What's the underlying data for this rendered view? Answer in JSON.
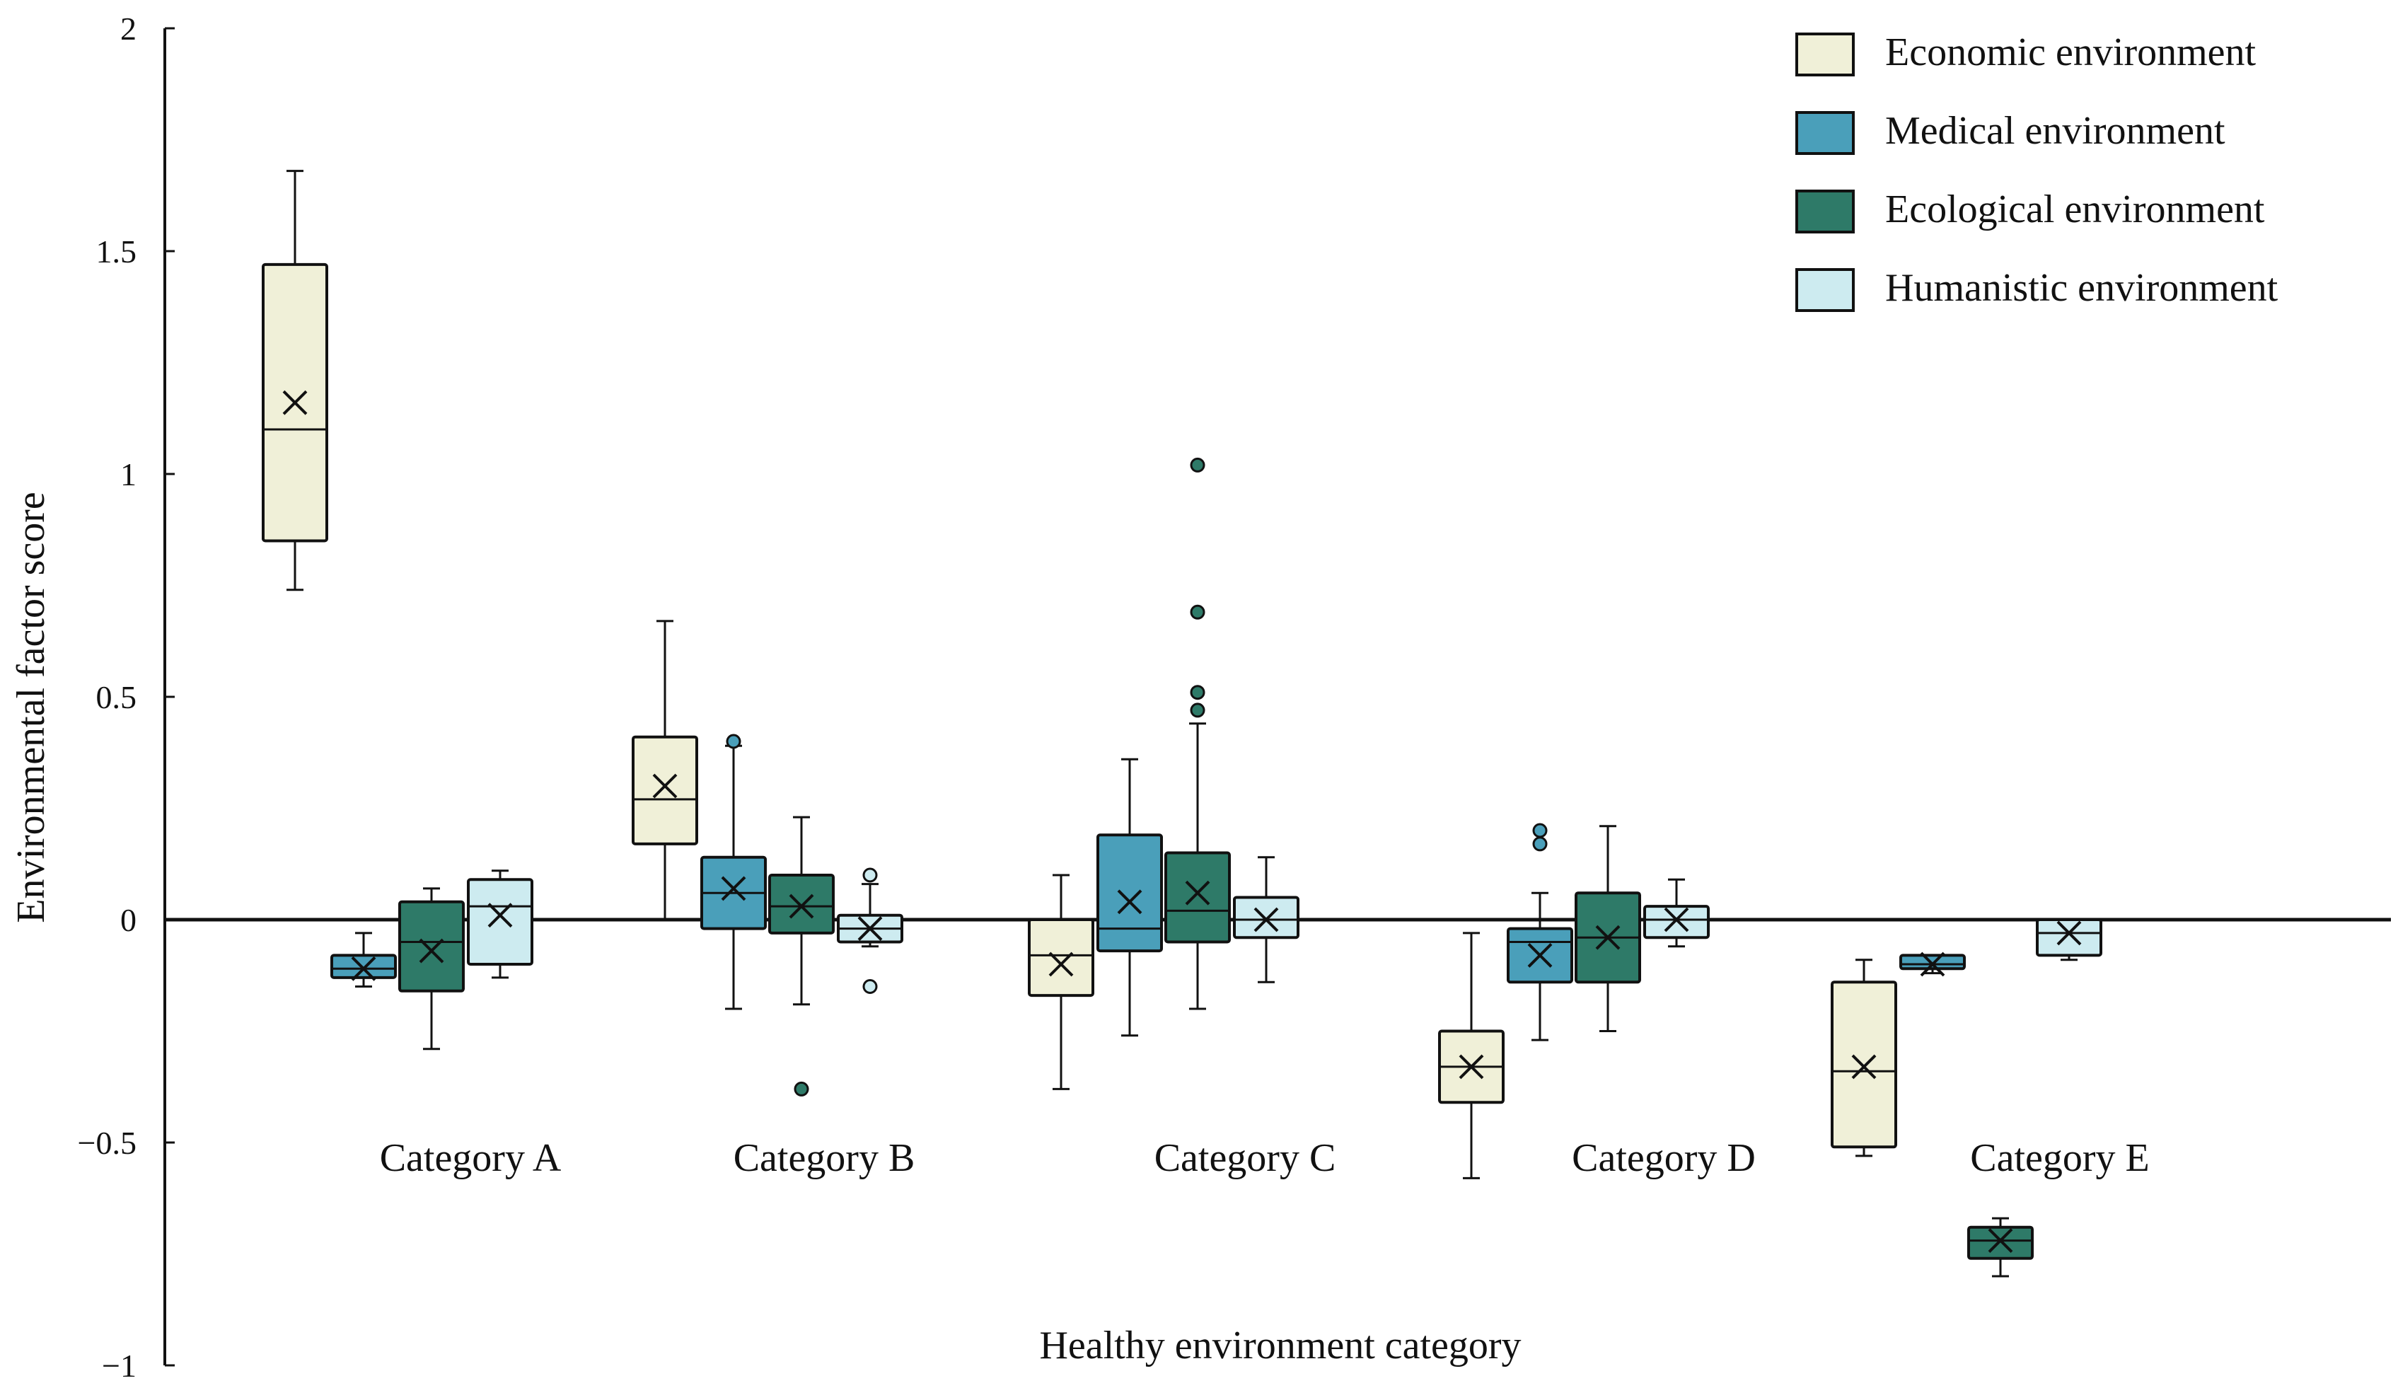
{
  "chart_data": {
    "type": "box",
    "xlabel": "Healthy environment category",
    "ylabel": "Environmental factor score",
    "ylim": [
      -1,
      2
    ],
    "yticks": [
      -1,
      -0.5,
      0,
      0.5,
      1,
      1.5,
      2
    ],
    "ytick_labels": [
      "−1",
      "−0.5",
      "0",
      "0.5",
      "1",
      "1.5",
      "2"
    ],
    "categories": [
      "Category A",
      "Category B",
      "Category C",
      "Category D",
      "Category E"
    ],
    "legend_position": "top-right",
    "grid": false,
    "series": [
      {
        "name": "Economic environment",
        "color": "#f0f0d8",
        "boxes": [
          {
            "min": 0.74,
            "q1": 0.85,
            "median": 1.1,
            "q3": 1.47,
            "max": 1.68,
            "mean": 1.16,
            "outliers": []
          },
          {
            "min": 0.0,
            "q1": 0.17,
            "median": 0.27,
            "q3": 0.41,
            "max": 0.67,
            "mean": 0.3,
            "outliers": []
          },
          {
            "min": -0.38,
            "q1": -0.17,
            "median": -0.08,
            "q3": 0.0,
            "max": 0.1,
            "mean": -0.1,
            "outliers": []
          },
          {
            "min": -0.58,
            "q1": -0.41,
            "median": -0.33,
            "q3": -0.25,
            "max": -0.03,
            "mean": -0.33,
            "outliers": []
          },
          {
            "min": -0.53,
            "q1": -0.51,
            "median": -0.34,
            "q3": -0.14,
            "max": -0.09,
            "mean": -0.33,
            "outliers": []
          }
        ]
      },
      {
        "name": "Medical environment",
        "color": "#4a9fba",
        "boxes": [
          {
            "min": -0.15,
            "q1": -0.13,
            "median": -0.11,
            "q3": -0.08,
            "max": -0.03,
            "mean": -0.11,
            "outliers": []
          },
          {
            "min": -0.2,
            "q1": -0.02,
            "median": 0.06,
            "q3": 0.14,
            "max": 0.39,
            "mean": 0.07,
            "outliers": [
              0.4
            ]
          },
          {
            "min": -0.26,
            "q1": -0.07,
            "median": -0.02,
            "q3": 0.19,
            "max": 0.36,
            "mean": 0.04,
            "outliers": []
          },
          {
            "min": -0.27,
            "q1": -0.14,
            "median": -0.05,
            "q3": -0.02,
            "max": 0.06,
            "mean": -0.08,
            "outliers": [
              0.17,
              0.2
            ]
          },
          {
            "min": -0.12,
            "q1": -0.11,
            "median": -0.1,
            "q3": -0.08,
            "max": -0.08,
            "mean": -0.1,
            "outliers": []
          }
        ]
      },
      {
        "name": "Ecological environment",
        "color": "#2e7a68",
        "boxes": [
          {
            "min": -0.29,
            "q1": -0.16,
            "median": -0.05,
            "q3": 0.04,
            "max": 0.07,
            "mean": -0.07,
            "outliers": []
          },
          {
            "min": -0.19,
            "q1": -0.03,
            "median": 0.03,
            "q3": 0.1,
            "max": 0.23,
            "mean": 0.03,
            "outliers": [
              -0.38
            ]
          },
          {
            "min": -0.2,
            "q1": -0.05,
            "median": 0.02,
            "q3": 0.15,
            "max": 0.44,
            "mean": 0.06,
            "outliers": [
              0.47,
              0.51,
              0.69,
              1.02
            ]
          },
          {
            "min": -0.25,
            "q1": -0.14,
            "median": -0.04,
            "q3": 0.06,
            "max": 0.21,
            "mean": -0.04,
            "outliers": []
          },
          {
            "min": -0.8,
            "q1": -0.76,
            "median": -0.72,
            "q3": -0.69,
            "max": -0.67,
            "mean": -0.72,
            "outliers": []
          }
        ]
      },
      {
        "name": "Humanistic environment",
        "color": "#cdebf0",
        "boxes": [
          {
            "min": -0.13,
            "q1": -0.1,
            "median": 0.03,
            "q3": 0.09,
            "max": 0.11,
            "mean": 0.01,
            "outliers": []
          },
          {
            "min": -0.06,
            "q1": -0.05,
            "median": -0.02,
            "q3": 0.01,
            "max": 0.08,
            "mean": -0.02,
            "outliers": [
              0.1,
              -0.15
            ]
          },
          {
            "min": -0.14,
            "q1": -0.04,
            "median": 0.0,
            "q3": 0.05,
            "max": 0.14,
            "mean": 0.0,
            "outliers": []
          },
          {
            "min": -0.06,
            "q1": -0.04,
            "median": 0.0,
            "q3": 0.03,
            "max": 0.09,
            "mean": 0.0,
            "outliers": []
          },
          {
            "min": -0.09,
            "q1": -0.08,
            "median": -0.03,
            "q3": 0.0,
            "max": 0.0,
            "mean": -0.03,
            "outliers": []
          }
        ]
      }
    ]
  }
}
